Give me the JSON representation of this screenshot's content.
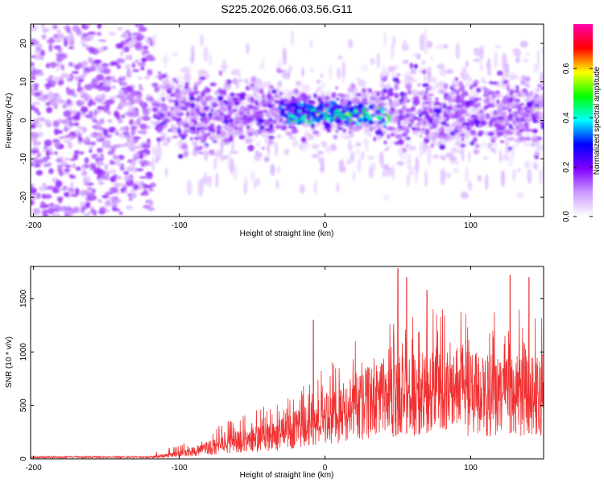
{
  "title": "S225.2026.066.03.56.G11",
  "colors": {
    "signal_line": "#f03232",
    "axis": "#000000",
    "background": "#ffffff"
  },
  "chart_data": [
    {
      "type": "heatmap",
      "xlabel": "Height of straight line (km)",
      "ylabel": "Frequency (Hz)",
      "xlim": [
        -202,
        150
      ],
      "ylim": [
        -25,
        25
      ],
      "xticks": [
        -200,
        -100,
        0,
        100
      ],
      "yticks": [
        -20,
        -10,
        0,
        10,
        20
      ],
      "ridge_center_hz": 2,
      "colorbar": {
        "label": "Normalized spectral amplitude",
        "range": [
          0.0,
          0.78
        ],
        "ticks": [
          0.0,
          0.2,
          0.4,
          0.6
        ],
        "tick_labels": [
          "0.0",
          "0.2",
          "0.4",
          "0.6"
        ],
        "colormap": [
          "#ffffff",
          "#cc99ff",
          "#8000ff",
          "#0000ff",
          "#00ffff",
          "#00ff00",
          "#ffff00",
          "#ff0000",
          "#ff00aa"
        ]
      }
    },
    {
      "type": "line",
      "xlabel": "Height of straight line (km)",
      "ylabel": "SNR (10 * v/v)",
      "xlim": [
        -202,
        150
      ],
      "ylim": [
        0,
        1800
      ],
      "xticks": [
        -200,
        -100,
        0,
        100
      ],
      "yticks": [
        0,
        500,
        1000,
        1500
      ],
      "envelope": {
        "x": [
          -202,
          -120,
          -110,
          -100,
          -90,
          -80,
          -70,
          -60,
          -50,
          -40,
          -30,
          -20,
          -10,
          0,
          10,
          20,
          30,
          40,
          50,
          60,
          70,
          80,
          90,
          100,
          110,
          120,
          130,
          140,
          150
        ],
        "median": [
          15,
          15,
          30,
          45,
          70,
          100,
          130,
          160,
          180,
          200,
          230,
          270,
          320,
          370,
          420,
          470,
          520,
          560,
          580,
          600,
          610,
          620,
          620,
          610,
          600,
          600,
          600,
          600,
          620
        ],
        "peak": [
          40,
          40,
          100,
          130,
          200,
          260,
          330,
          400,
          450,
          500,
          560,
          620,
          750,
          880,
          1000,
          1100,
          1150,
          1300,
          1400,
          1450,
          1450,
          1450,
          1400,
          1450,
          1450,
          1450,
          1400,
          1400,
          1350
        ]
      },
      "notable_peaks": [
        {
          "x": -8,
          "y": 1300
        },
        {
          "x": 50,
          "y": 1780
        },
        {
          "x": 56,
          "y": 1700
        },
        {
          "x": 70,
          "y": 1580
        },
        {
          "x": 127,
          "y": 1720
        },
        {
          "x": 140,
          "y": 1700
        }
      ]
    }
  ]
}
